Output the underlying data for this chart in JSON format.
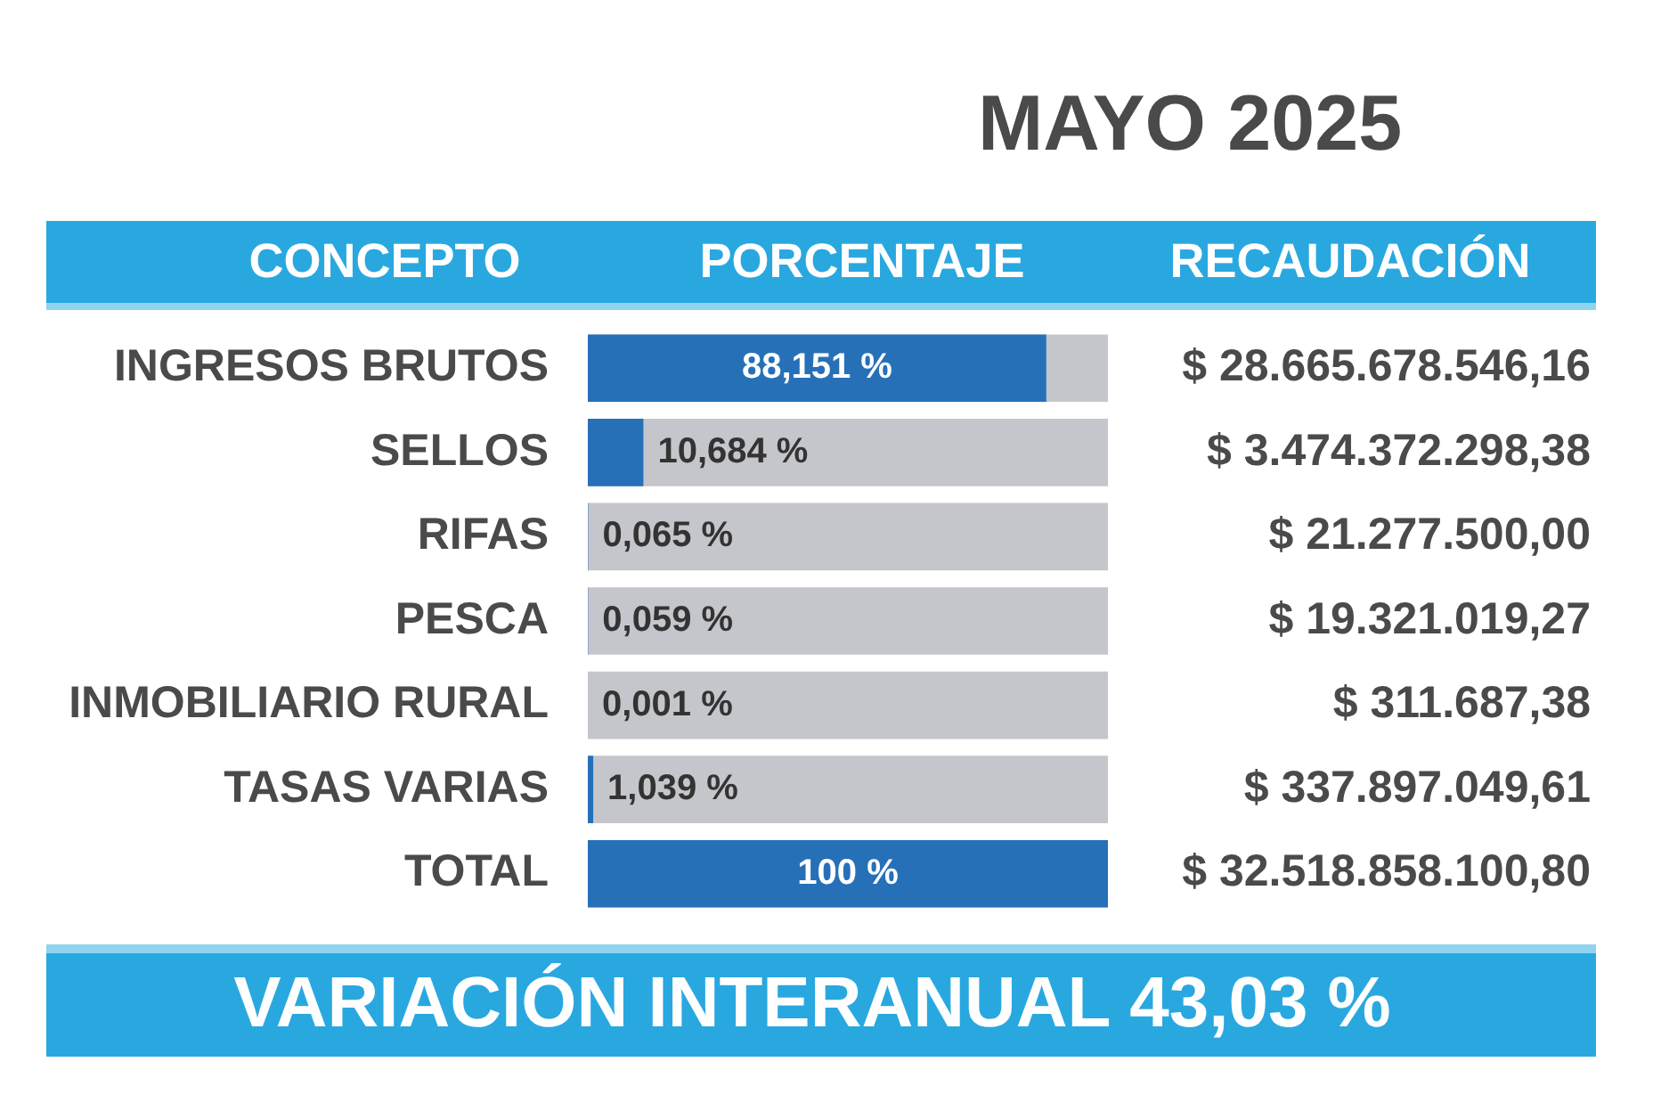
{
  "chart_data": {
    "type": "bar",
    "orientation": "horizontal",
    "title": "MAYO 2025",
    "categories": [
      "INGRESOS BRUTOS",
      "SELLOS",
      "RIFAS",
      "PESCA",
      "INMOBILIARIO RURAL",
      "TASAS VARIAS",
      "TOTAL"
    ],
    "values": [
      88.151,
      10.684,
      0.065,
      0.059,
      0.001,
      1.039,
      100
    ],
    "value_labels": [
      "88,151 %",
      "10,684 %",
      "0,065 %",
      "0,059 %",
      "0,001 %",
      "1,039 %",
      "100 %"
    ],
    "color": "#2670b8",
    "xlim": [
      0,
      100
    ],
    "tick_labels": "y",
    "grid": false,
    "legend": false,
    "annotations": [
      "CONCEPTO",
      "PORCENTAJE",
      "RECAUDACIÓN",
      "$ 28.665.678.546,16",
      "$ 3.474.372.298,38",
      "$ 21.277.500,00",
      "$ 19.321.019,27",
      "$ 311.687,38",
      "$ 337.897.049,61",
      "$ 32.518.858.100,80",
      "VARIACIÓN INTERANUAL 43,03 %"
    ]
  }
}
